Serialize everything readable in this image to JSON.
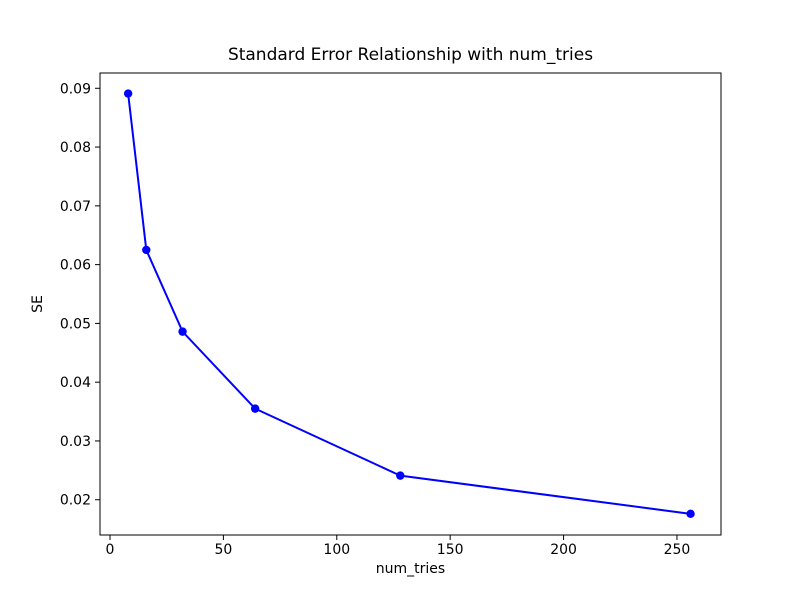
{
  "figure": {
    "background": "#ffffff"
  },
  "chart_data": {
    "type": "line",
    "title": "Standard Error Relationship with num_tries",
    "xlabel": "num_tries",
    "ylabel": "SE",
    "x": [
      8,
      16,
      32,
      64,
      128,
      256
    ],
    "y": [
      0.0891,
      0.0625,
      0.0486,
      0.0355,
      0.0241,
      0.0176
    ],
    "series_color": "#0000ff",
    "marker": "circle",
    "line_width": 2,
    "marker_radius": 4.2,
    "xlim": [
      -4.41,
      269.42
    ],
    "ylim": [
      0.014,
      0.0926
    ],
    "xticks": [
      0,
      50,
      100,
      150,
      200,
      250
    ],
    "xtick_labels": [
      "0",
      "50",
      "100",
      "150",
      "200",
      "250"
    ],
    "yticks": [
      0.02,
      0.03,
      0.04,
      0.05,
      0.06,
      0.07,
      0.08,
      0.09
    ],
    "ytick_labels": [
      "0.02",
      "0.03",
      "0.04",
      "0.05",
      "0.06",
      "0.07",
      "0.08",
      "0.09"
    ],
    "grid": false,
    "legend": null,
    "spine_color": "#000000",
    "text_color": "#000000"
  }
}
